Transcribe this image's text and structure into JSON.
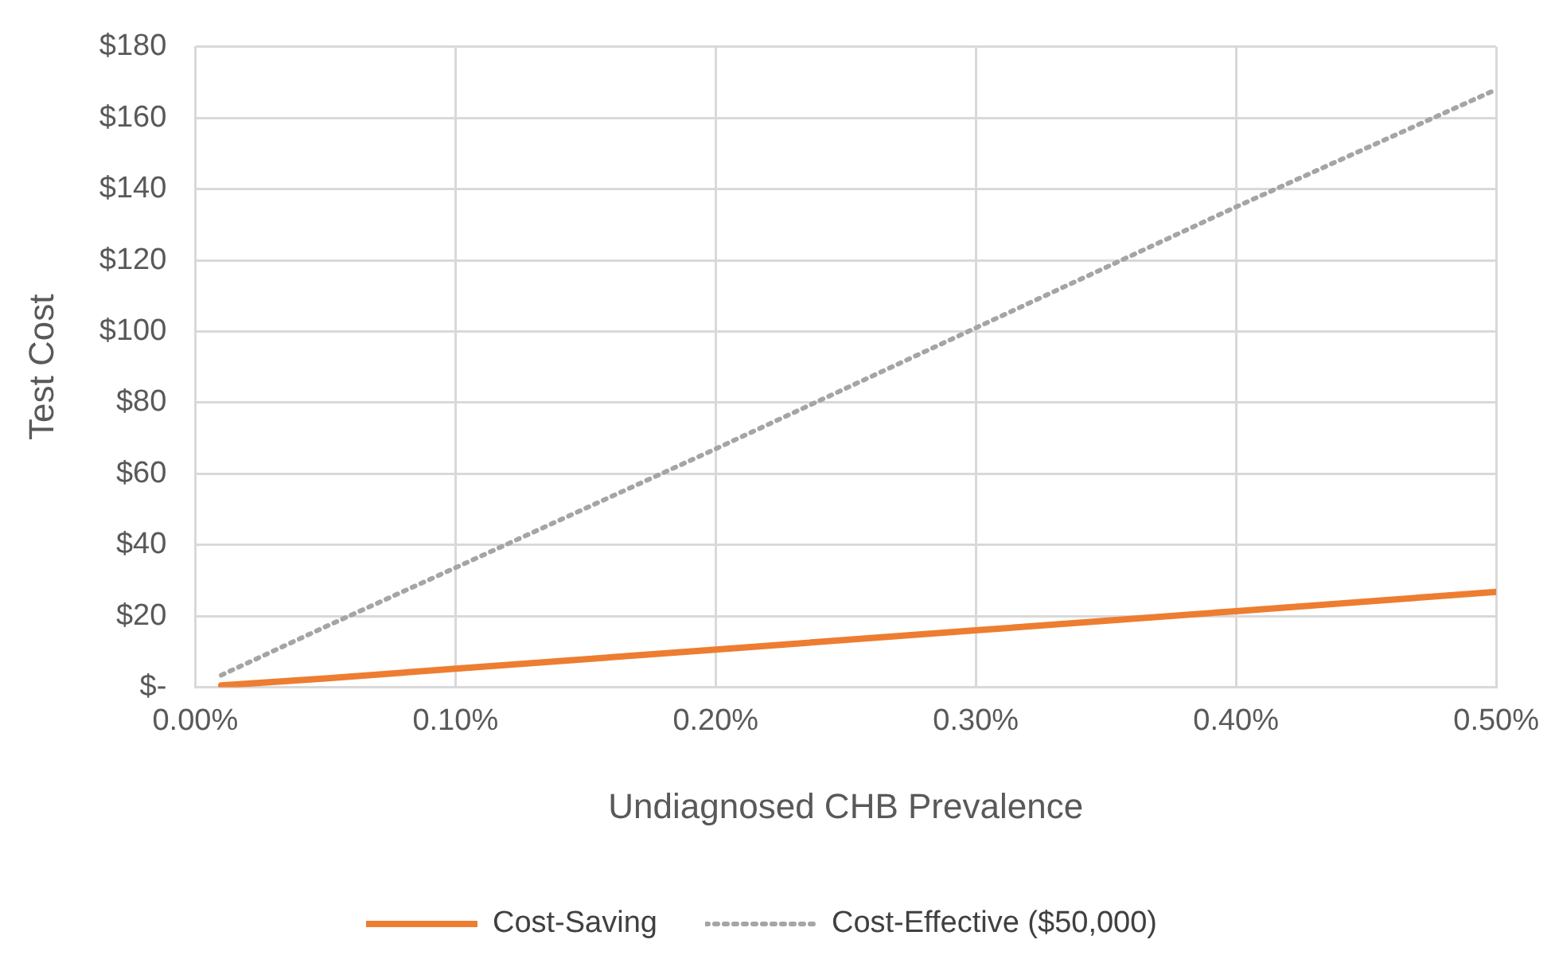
{
  "chart_data": {
    "type": "line",
    "xlabel": "Undiagnosed CHB Prevalence",
    "ylabel": "Test Cost",
    "x": [
      0.01,
      0.05,
      0.1,
      0.2,
      0.3,
      0.4,
      0.5
    ],
    "series": [
      {
        "name": "Cost-Saving",
        "color": "#ed7d31",
        "line_style": "solid",
        "values": [
          0.5,
          2.5,
          5.2,
          10.6,
          16,
          21.4,
          26.8
        ]
      },
      {
        "name": "Cost-Effective ($50,000)",
        "color": "#a5a5a5",
        "line_style": "dotted",
        "values": [
          3.4,
          17,
          33.6,
          67,
          101,
          135,
          168
        ]
      }
    ],
    "xlim": [
      0,
      0.5
    ],
    "xticks": [
      {
        "value": 0,
        "label": "0.00%"
      },
      {
        "value": 0.1,
        "label": "0.10%"
      },
      {
        "value": 0.2,
        "label": "0.20%"
      },
      {
        "value": 0.3,
        "label": "0.30%"
      },
      {
        "value": 0.4,
        "label": "0.40%"
      },
      {
        "value": 0.5,
        "label": "0.50%"
      }
    ],
    "ylim": [
      0,
      180
    ],
    "yticks": [
      {
        "value": 0,
        "label": "$-"
      },
      {
        "value": 20,
        "label": "$20"
      },
      {
        "value": 40,
        "label": "$40"
      },
      {
        "value": 60,
        "label": "$60"
      },
      {
        "value": 80,
        "label": "$80"
      },
      {
        "value": 100,
        "label": "$100"
      },
      {
        "value": 120,
        "label": "$120"
      },
      {
        "value": 140,
        "label": "$140"
      },
      {
        "value": 160,
        "label": "$160"
      },
      {
        "value": 180,
        "label": "$180"
      }
    ],
    "grid": true,
    "legend": "bottom",
    "marker": "none"
  }
}
